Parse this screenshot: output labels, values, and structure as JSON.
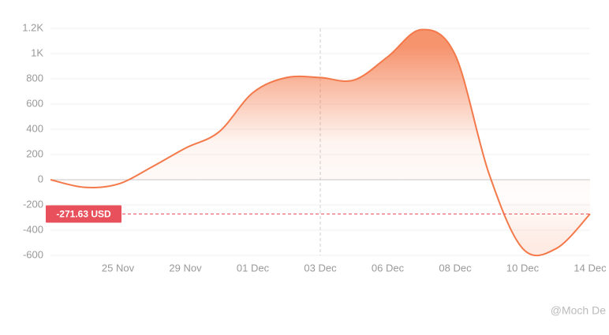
{
  "chart_data": {
    "type": "area",
    "categories": [
      null,
      null,
      "25 Nov",
      null,
      "29 Nov",
      null,
      "01 Dec",
      null,
      "03 Dec",
      null,
      "06 Dec",
      null,
      "08 Dec",
      null,
      "10 Dec",
      null,
      "14 Dec"
    ],
    "values": [
      0,
      -60,
      -35,
      100,
      250,
      380,
      690,
      810,
      810,
      790,
      975,
      1190,
      990,
      50,
      -545,
      -545,
      -271.63
    ],
    "color": "#f4794a",
    "ylim": [
      -600,
      1200
    ],
    "yticks": [
      -600,
      -400,
      -200,
      0,
      200,
      400,
      600,
      800,
      {
        "value": 1000,
        "label": "1K"
      },
      {
        "value": 1200,
        "label": "1.2K"
      }
    ],
    "grid": true,
    "crosshair_index": 8,
    "reference_line": {
      "value": -271.63,
      "label": "-271.63 USD",
      "color": "#e8505b"
    },
    "watermark": "@Moch De"
  }
}
